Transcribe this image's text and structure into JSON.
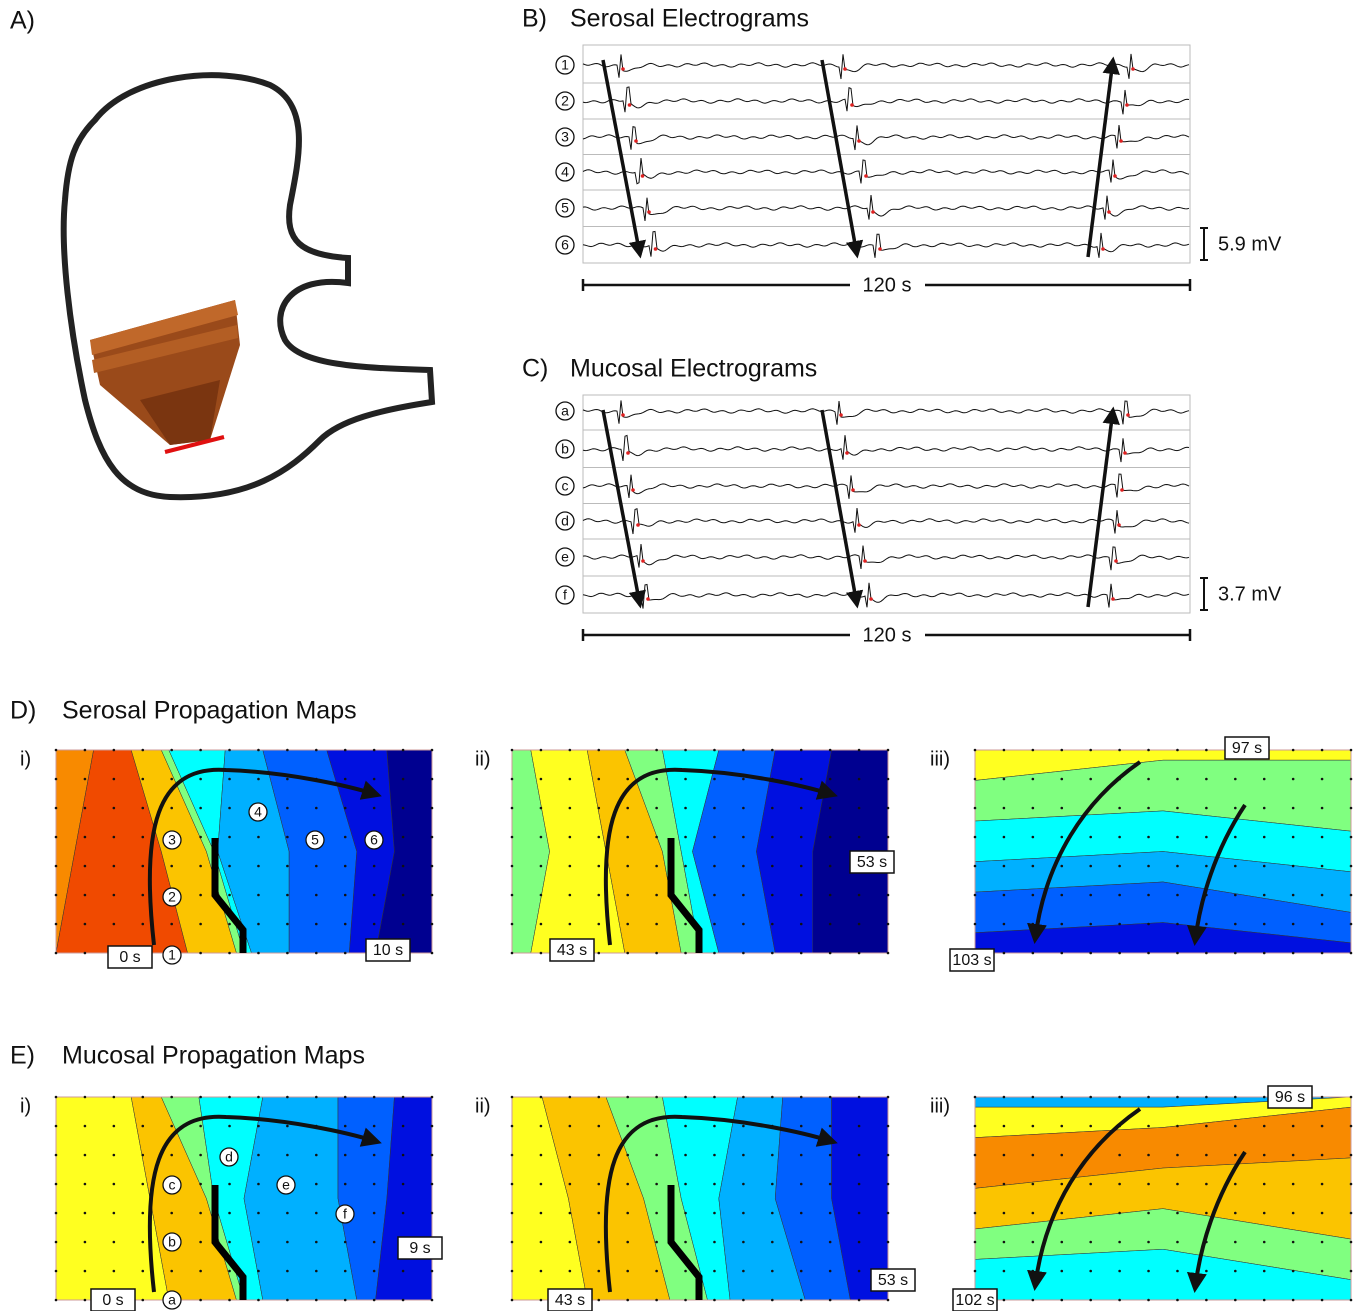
{
  "panel_a": {
    "label": "A)"
  },
  "panel_b": {
    "label": "B)",
    "title": "Serosal Electrograms",
    "channels": [
      "1",
      "2",
      "3",
      "4",
      "5",
      "6"
    ],
    "amplitude_scale": "5.9 mV",
    "time_scale": "120 s"
  },
  "panel_c": {
    "label": "C)",
    "title": "Mucosal Electrograms",
    "channels": [
      "a",
      "b",
      "c",
      "d",
      "e",
      "f"
    ],
    "amplitude_scale": "3.7 mV",
    "time_scale": "120 s"
  },
  "panel_d": {
    "label": "D)",
    "title": "Serosal Propagation Maps",
    "maps": [
      {
        "label": "i)",
        "start_time": "0 s",
        "end_time": "10 s",
        "electrodes": [
          "1",
          "2",
          "3",
          "4",
          "5",
          "6"
        ]
      },
      {
        "label": "ii)",
        "start_time": "43 s",
        "end_time": "53 s"
      },
      {
        "label": "iii)",
        "start_time": "97 s",
        "end_time": "103 s"
      }
    ]
  },
  "panel_e": {
    "label": "E)",
    "title": "Mucosal Propagation Maps",
    "maps": [
      {
        "label": "i)",
        "start_time": "0 s",
        "end_time": "9 s",
        "electrodes": [
          "a",
          "b",
          "c",
          "d",
          "e",
          "f"
        ]
      },
      {
        "label": "ii)",
        "start_time": "43 s",
        "end_time": "53 s"
      },
      {
        "label": "iii)",
        "start_time": "96 s",
        "end_time": "102 s"
      }
    ]
  }
}
